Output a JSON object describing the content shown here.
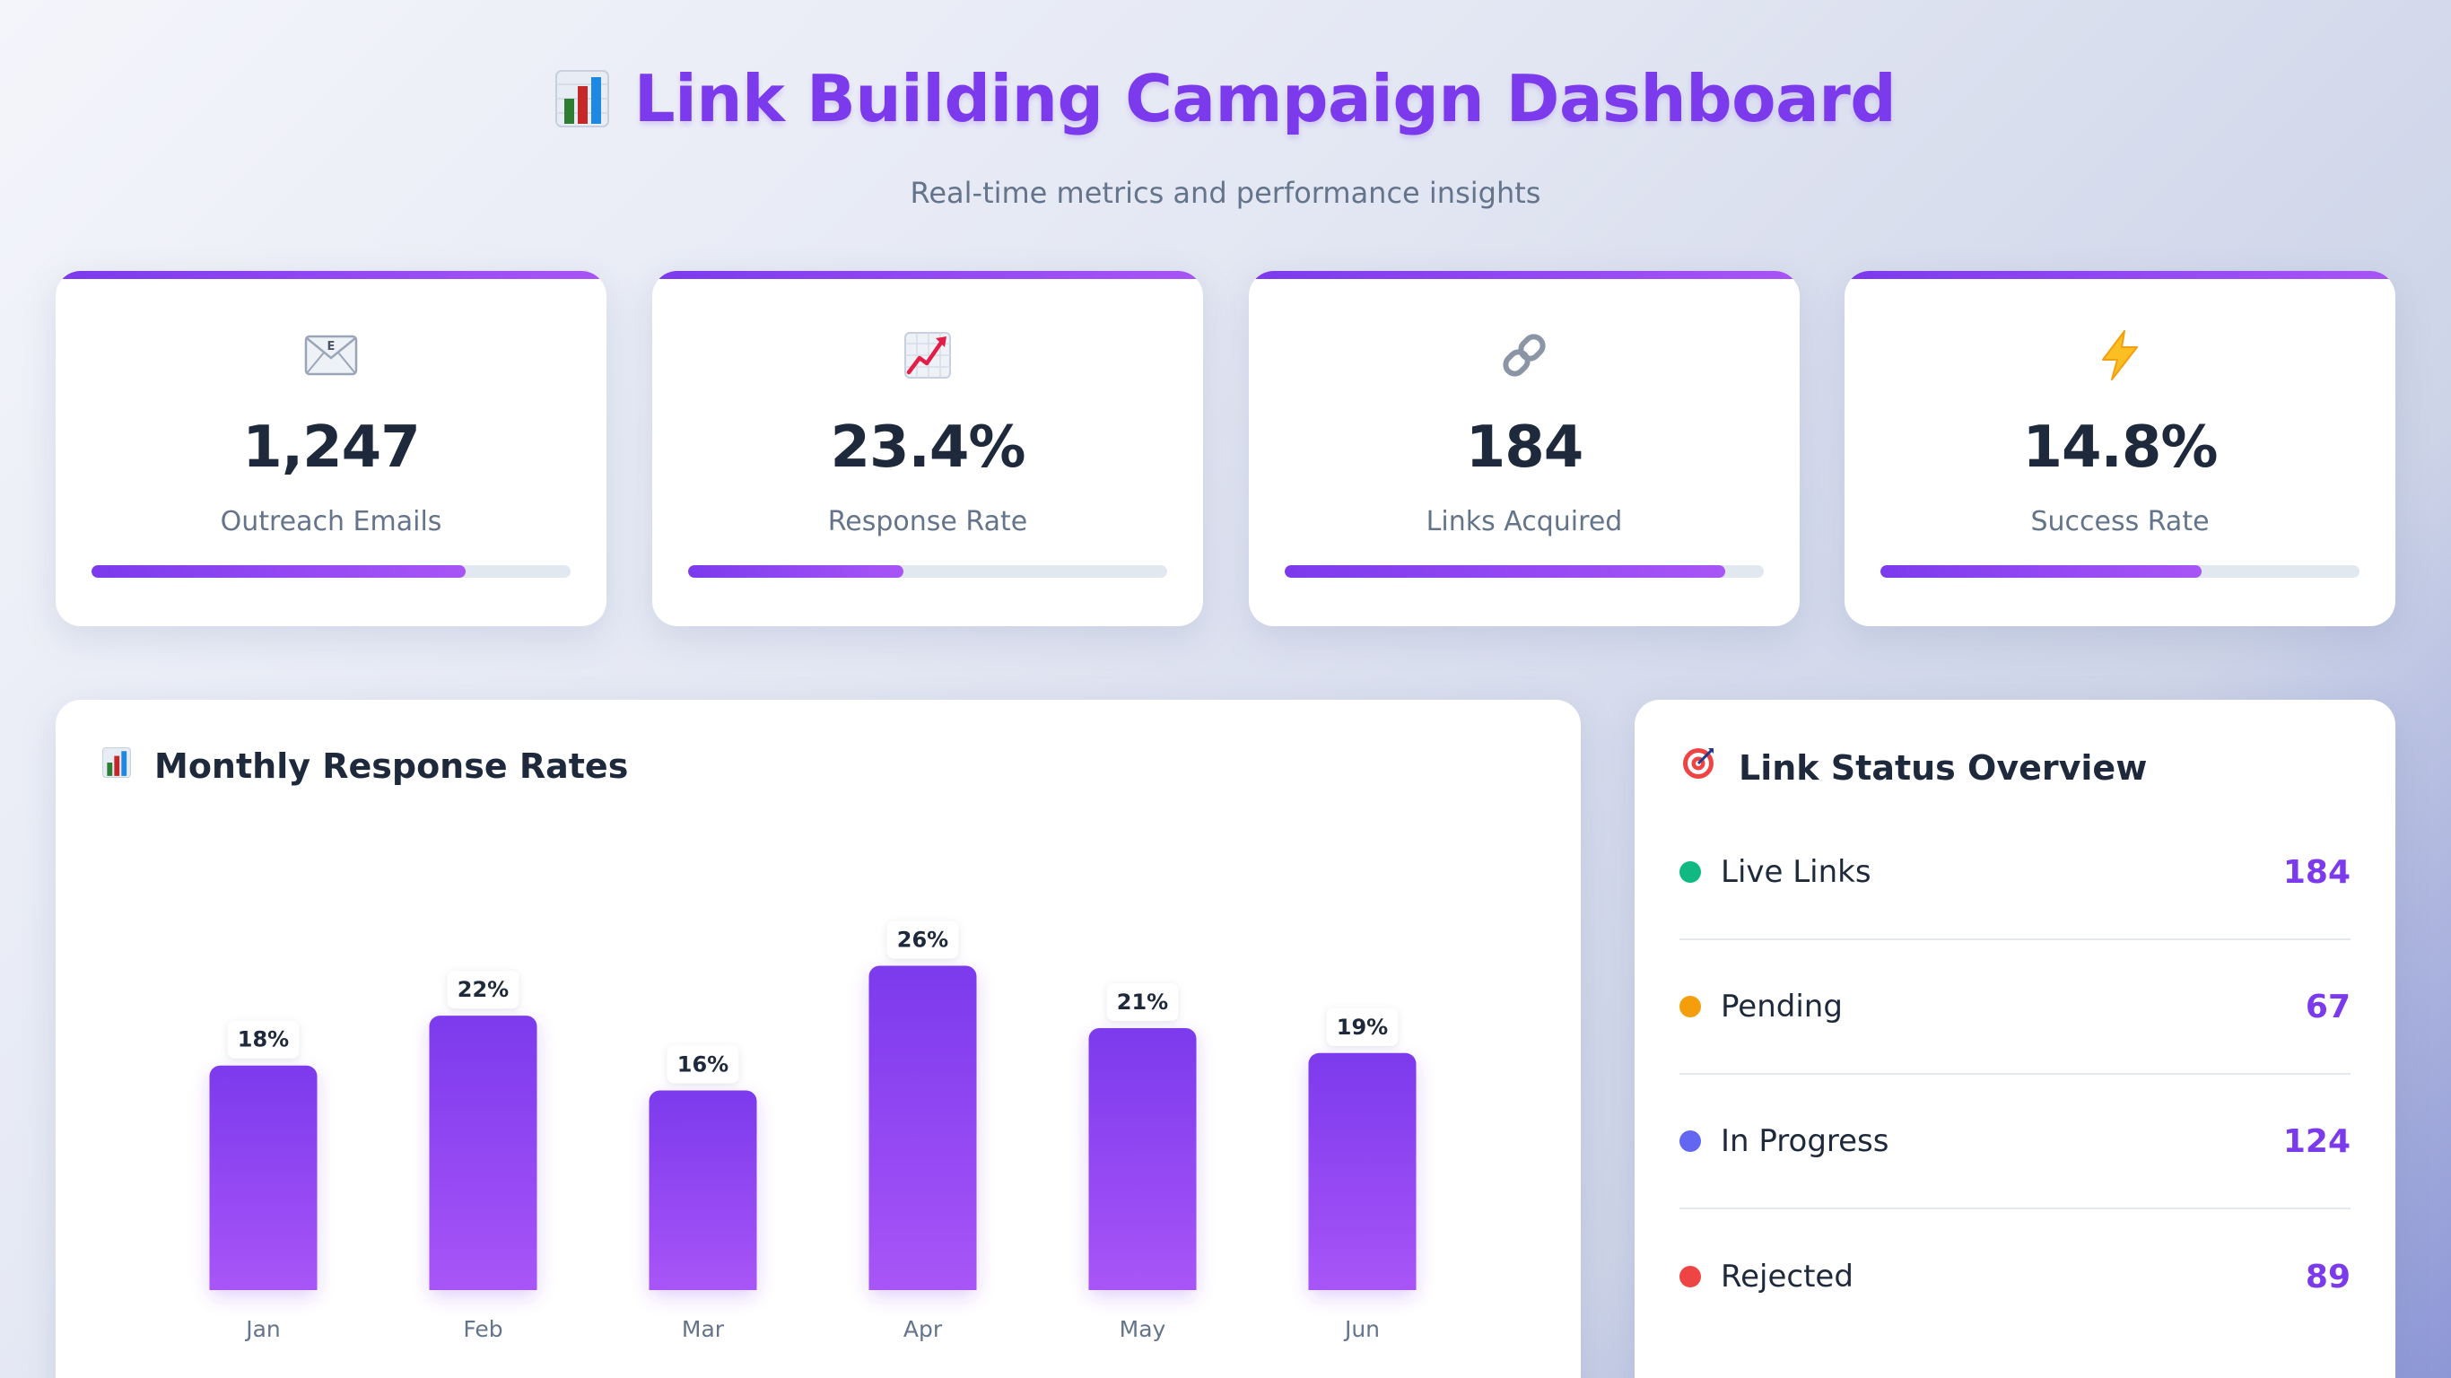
{
  "header": {
    "title": "Link Building Campaign Dashboard",
    "subtitle": "Real-time metrics and performance insights",
    "icon": "bar-chart-icon"
  },
  "stats": [
    {
      "icon": "envelope-icon",
      "value": "1,247",
      "label": "Outreach Emails",
      "progress": 0.78
    },
    {
      "icon": "trending-up-chart-icon",
      "value": "23.4%",
      "label": "Response Rate",
      "progress": 0.45
    },
    {
      "icon": "link-icon",
      "value": "184",
      "label": "Links Acquired",
      "progress": 0.92
    },
    {
      "icon": "lightning-icon",
      "value": "14.8%",
      "label": "Success Rate",
      "progress": 0.67
    }
  ],
  "chart_card": {
    "title": "Monthly Response Rates",
    "icon": "bar-chart-icon"
  },
  "chart_data": {
    "type": "bar",
    "categories": [
      "Jan",
      "Feb",
      "Mar",
      "Apr",
      "May",
      "Jun"
    ],
    "values": [
      18,
      22,
      16,
      26,
      21,
      19
    ],
    "data_labels": [
      "18%",
      "22%",
      "16%",
      "26%",
      "21%",
      "19%"
    ],
    "title": "Monthly Response Rates",
    "xlabel": "",
    "ylabel": "",
    "ylim": [
      0,
      30
    ],
    "grid": false,
    "bar_color_top": "#7c3aed",
    "bar_color_bottom": "#a855f7"
  },
  "status_card": {
    "title": "Link Status Overview",
    "icon": "target-icon",
    "items": [
      {
        "label": "Live Links",
        "value": "184",
        "color": "#10b981"
      },
      {
        "label": "Pending",
        "value": "67",
        "color": "#f59e0b"
      },
      {
        "label": "In Progress",
        "value": "124",
        "color": "#6366f1"
      },
      {
        "label": "Rejected",
        "value": "89",
        "color": "#ef4444"
      }
    ]
  },
  "colors": {
    "accent": "#7c3aed",
    "accent_light": "#a855f7",
    "text_dark": "#1e293b",
    "text_muted": "#64748b"
  }
}
